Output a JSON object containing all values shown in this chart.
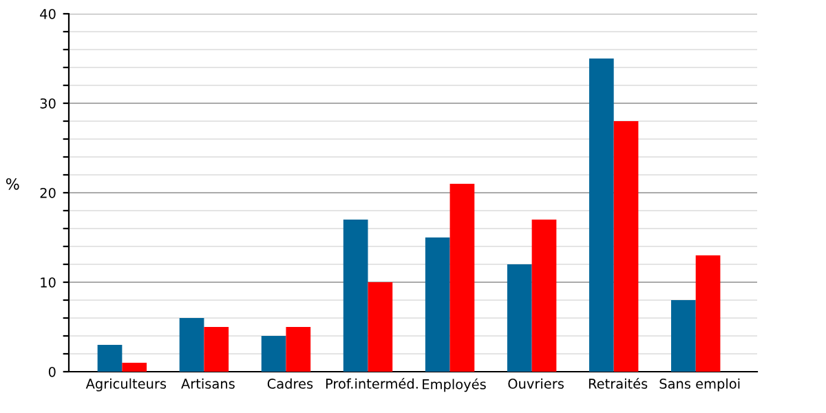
{
  "chart_data": {
    "type": "bar",
    "ylabel": "%",
    "categories": [
      "Agriculteurs",
      "Artisans",
      "Cadres",
      "Prof.interméd.",
      "Employés",
      "Ouvriers",
      "Retraités",
      "Sans emploi"
    ],
    "series": [
      {
        "color": "#006699",
        "values": [
          3,
          6,
          4,
          17,
          15,
          12,
          35,
          8
        ]
      },
      {
        "color": "#ff0000",
        "values": [
          1,
          5,
          5,
          10,
          21,
          17,
          28,
          13
        ]
      }
    ],
    "ylim": [
      0,
      40
    ],
    "yticks": [
      0,
      {
        "value": 2,
        "label": null
      },
      {
        "value": 4,
        "label": null
      },
      {
        "value": 6,
        "label": null
      },
      {
        "value": 8,
        "label": null
      },
      10,
      {
        "value": 12,
        "label": null
      },
      {
        "value": 14,
        "label": null
      },
      {
        "value": 16,
        "label": null
      },
      {
        "value": 18,
        "label": null
      },
      20,
      {
        "value": 22,
        "label": null
      },
      {
        "value": 24,
        "label": null
      },
      {
        "value": 26,
        "label": null
      },
      {
        "value": 28,
        "label": null
      },
      30,
      {
        "value": 32,
        "label": null
      },
      {
        "value": 34,
        "label": null
      },
      {
        "value": 36,
        "label": null
      },
      {
        "value": 38,
        "label": null
      },
      40
    ],
    "grid": "y",
    "legend": false
  }
}
